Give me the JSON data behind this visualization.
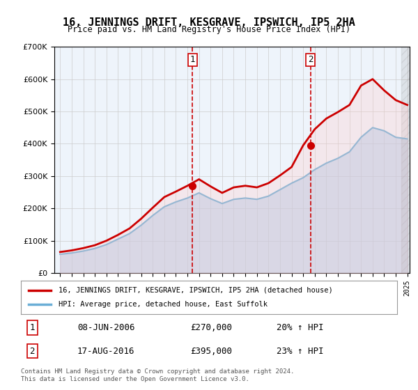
{
  "title": "16, JENNINGS DRIFT, KESGRAVE, IPSWICH, IP5 2HA",
  "subtitle": "Price paid vs. HM Land Registry's House Price Index (HPI)",
  "legend_line1": "16, JENNINGS DRIFT, KESGRAVE, IPSWICH, IP5 2HA (detached house)",
  "legend_line2": "HPI: Average price, detached house, East Suffolk",
  "transaction1_label": "1",
  "transaction1_date": "08-JUN-2006",
  "transaction1_price": "£270,000",
  "transaction1_hpi": "20% ↑ HPI",
  "transaction2_label": "2",
  "transaction2_date": "17-AUG-2016",
  "transaction2_price": "£395,000",
  "transaction2_hpi": "23% ↑ HPI",
  "footer": "Contains HM Land Registry data © Crown copyright and database right 2024.\nThis data is licensed under the Open Government Licence v3.0.",
  "hpi_color": "#a8c8e8",
  "price_color": "#cc0000",
  "marker_color": "#cc0000",
  "vline_color": "#cc0000",
  "background_color": "#ffffff",
  "plot_bg_color": "#eef4fb",
  "ylim_min": 0,
  "ylim_max": 700000,
  "year_start": 1995,
  "year_end": 2025,
  "transaction1_year": 2006.44,
  "transaction2_year": 2016.63,
  "hpi_years": [
    1995,
    1996,
    1997,
    1998,
    1999,
    2000,
    2001,
    2002,
    2003,
    2004,
    2005,
    2006,
    2007,
    2008,
    2009,
    2010,
    2011,
    2012,
    2013,
    2014,
    2015,
    2016,
    2017,
    2018,
    2019,
    2020,
    2021,
    2022,
    2023,
    2024,
    2025
  ],
  "hpi_values": [
    58000,
    62000,
    68000,
    76000,
    88000,
    105000,
    122000,
    148000,
    178000,
    205000,
    220000,
    232000,
    248000,
    230000,
    215000,
    228000,
    232000,
    228000,
    238000,
    258000,
    278000,
    295000,
    320000,
    340000,
    355000,
    375000,
    420000,
    450000,
    440000,
    420000,
    415000
  ],
  "price_years": [
    1995,
    1996,
    1997,
    1998,
    1999,
    2000,
    2001,
    2002,
    2003,
    2004,
    2005,
    2006,
    2007,
    2008,
    2009,
    2010,
    2011,
    2012,
    2013,
    2014,
    2015,
    2016,
    2017,
    2018,
    2019,
    2020,
    2021,
    2022,
    2023,
    2024,
    2025
  ],
  "price_values": [
    65000,
    70000,
    77000,
    86000,
    100000,
    118000,
    138000,
    168000,
    202000,
    235000,
    252000,
    270000,
    290000,
    268000,
    248000,
    265000,
    270000,
    265000,
    278000,
    302000,
    328000,
    395000,
    445000,
    478000,
    498000,
    520000,
    580000,
    600000,
    565000,
    535000,
    520000
  ]
}
